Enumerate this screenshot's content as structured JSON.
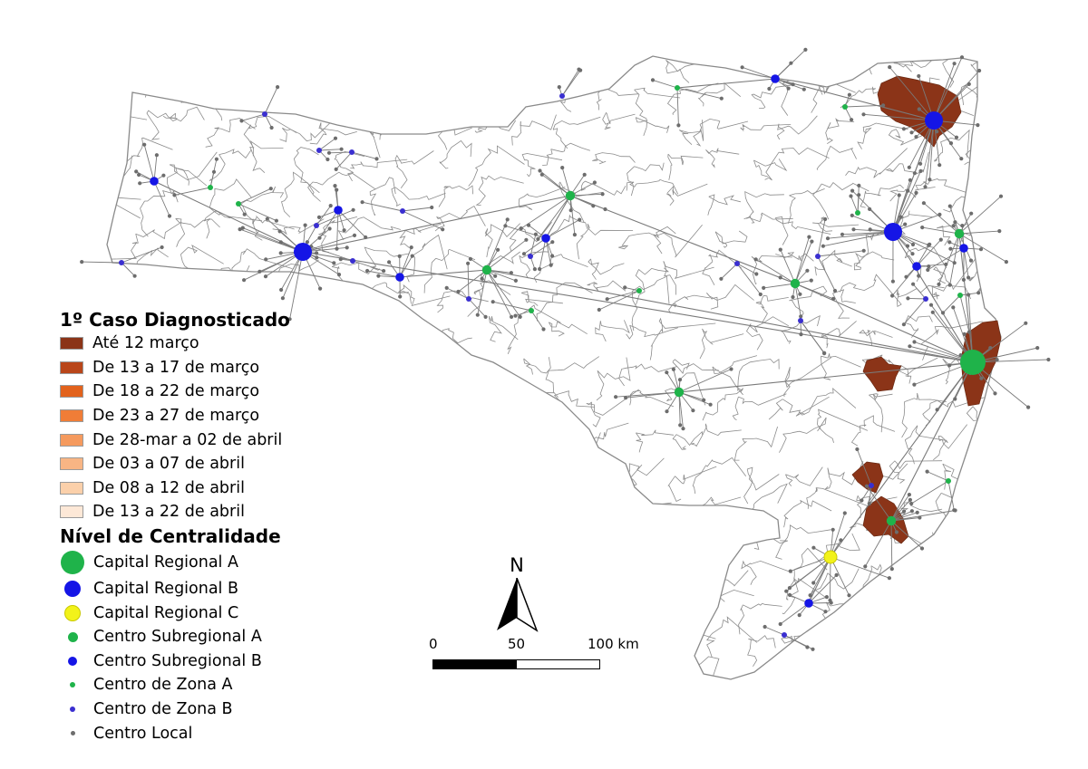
{
  "legend_case": {
    "title": "1º Caso Diagnosticado",
    "items": [
      {
        "label": "Até 12 março",
        "color": "#8b3418"
      },
      {
        "label": "De 13 a 17 de março",
        "color": "#b9461a"
      },
      {
        "label": "De 18 a 22 de março",
        "color": "#e2621c"
      },
      {
        "label": "De 23 a 27 de março",
        "color": "#f07d37"
      },
      {
        "label": "De 28-mar a 02 de abril",
        "color": "#f59a5e"
      },
      {
        "label": "De 03 a 07 de abril",
        "color": "#f8b584"
      },
      {
        "label": "De 08 a 12 de abril",
        "color": "#fbd0aa"
      },
      {
        "label": "De 13 a 22 de abril",
        "color": "#fde8d7"
      }
    ]
  },
  "legend_centrality": {
    "title": "Nível de Centralidade",
    "items": [
      {
        "label": "Capital Regional A",
        "color": "#1fb34a",
        "icon": "large-green-circle"
      },
      {
        "label": "Capital Regional B",
        "color": "#1515e6",
        "icon": "large-blue-circle"
      },
      {
        "label": "Capital Regional C",
        "color": "#f2f21a",
        "icon": "yellow-circle"
      },
      {
        "label": "Centro Subregional A",
        "color": "#1fb34a",
        "icon": "medium-green-dot"
      },
      {
        "label": "Centro Subregional B",
        "color": "#1515e6",
        "icon": "medium-blue-dot"
      },
      {
        "label": "Centro de Zona A",
        "color": "#1fb34a",
        "icon": "small-green-dot"
      },
      {
        "label": "Centro de Zona B",
        "color": "#3a2fd0",
        "icon": "small-blue-dot"
      },
      {
        "label": "Centro Local",
        "color": "#6d6d6d",
        "icon": "grey-dot"
      }
    ]
  },
  "north_arrow": {
    "label": "N"
  },
  "scale_bar": {
    "tick_0": "0",
    "tick_1": "50",
    "tick_2": "100 km"
  }
}
